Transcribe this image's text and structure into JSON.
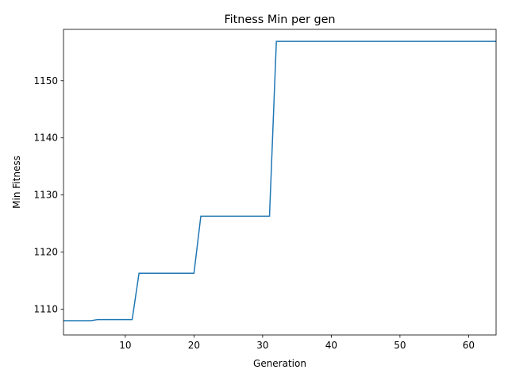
{
  "chart_data": {
    "type": "line",
    "title": "Fitness Min per gen",
    "xlabel": "Generation",
    "ylabel": "Min Fitness",
    "xlim": [
      1,
      64
    ],
    "ylim": [
      1105.5,
      1159.0
    ],
    "xticks": [
      10,
      20,
      30,
      40,
      50,
      60
    ],
    "yticks": [
      1110,
      1120,
      1130,
      1140,
      1150
    ],
    "grid": false,
    "legend": "none",
    "color": "#1f77b4",
    "series": [
      {
        "x": [
          1,
          2,
          3,
          4,
          5,
          6,
          7,
          8,
          9,
          10,
          11,
          12,
          13,
          14,
          15,
          16,
          17,
          18,
          19,
          20,
          21,
          22,
          23,
          24,
          25,
          26,
          27,
          28,
          29,
          30,
          31,
          32,
          33,
          34,
          35,
          36,
          37,
          38,
          39,
          40,
          41,
          42,
          43,
          44,
          45,
          46,
          47,
          48,
          49,
          50,
          51,
          52,
          53,
          54,
          55,
          56,
          57,
          58,
          59,
          60,
          61,
          62,
          63,
          64
        ],
        "values": [
          1108.0,
          1108.0,
          1108.0,
          1108.0,
          1108.0,
          1108.2,
          1108.2,
          1108.2,
          1108.2,
          1108.2,
          1108.2,
          1116.3,
          1116.3,
          1116.3,
          1116.3,
          1116.3,
          1116.3,
          1116.3,
          1116.3,
          1116.3,
          1126.3,
          1126.3,
          1126.3,
          1126.3,
          1126.3,
          1126.3,
          1126.3,
          1126.3,
          1126.3,
          1126.3,
          1126.3,
          1156.9,
          1156.9,
          1156.9,
          1156.9,
          1156.9,
          1156.9,
          1156.9,
          1156.9,
          1156.9,
          1156.9,
          1156.9,
          1156.9,
          1156.9,
          1156.9,
          1156.9,
          1156.9,
          1156.9,
          1156.9,
          1156.9,
          1156.9,
          1156.9,
          1156.9,
          1156.9,
          1156.9,
          1156.9,
          1156.9,
          1156.9,
          1156.9,
          1156.9,
          1156.9,
          1156.9,
          1156.9,
          1156.9
        ]
      }
    ]
  }
}
